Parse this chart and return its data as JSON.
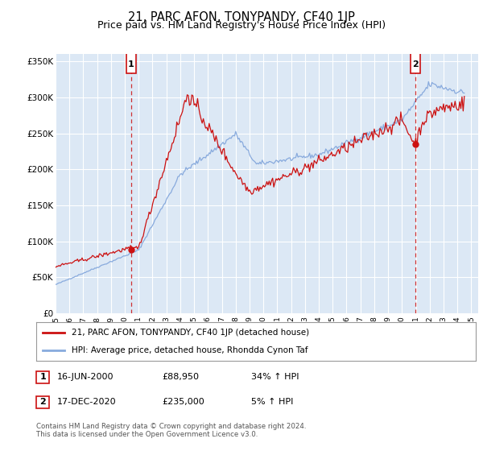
{
  "title": "21, PARC AFON, TONYPANDY, CF40 1JP",
  "subtitle": "Price paid vs. HM Land Registry's House Price Index (HPI)",
  "title_fontsize": 10.5,
  "subtitle_fontsize": 9,
  "bg_color": "#ffffff",
  "plot_bg_color": "#dce8f5",
  "grid_color": "#ffffff",
  "red_color": "#cc1111",
  "blue_color": "#88aadd",
  "dashed_color": "#cc1111",
  "ylim": [
    0,
    360000
  ],
  "yticks": [
    0,
    50000,
    100000,
    150000,
    200000,
    250000,
    300000,
    350000
  ],
  "ytick_labels": [
    "£0",
    "£50K",
    "£100K",
    "£150K",
    "£200K",
    "£250K",
    "£300K",
    "£350K"
  ],
  "xmin_year": 1995.0,
  "xmax_year": 2025.5,
  "xtick_years": [
    1995,
    1996,
    1997,
    1998,
    1999,
    2000,
    2001,
    2002,
    2003,
    2004,
    2005,
    2006,
    2007,
    2008,
    2009,
    2010,
    2011,
    2012,
    2013,
    2014,
    2015,
    2016,
    2017,
    2018,
    2019,
    2020,
    2021,
    2022,
    2023,
    2024,
    2025
  ],
  "marker1_x": 2000.46,
  "marker1_y": 88950,
  "marker2_x": 2020.96,
  "marker2_y": 235000,
  "legend_red_label": "21, PARC AFON, TONYPANDY, CF40 1JP (detached house)",
  "legend_blue_label": "HPI: Average price, detached house, Rhondda Cynon Taf",
  "note1_num": "1",
  "note1_date": "16-JUN-2000",
  "note1_price": "£88,950",
  "note1_hpi": "34% ↑ HPI",
  "note2_num": "2",
  "note2_date": "17-DEC-2020",
  "note2_price": "£235,000",
  "note2_hpi": "5% ↑ HPI",
  "footnote": "Contains HM Land Registry data © Crown copyright and database right 2024.\nThis data is licensed under the Open Government Licence v3.0."
}
